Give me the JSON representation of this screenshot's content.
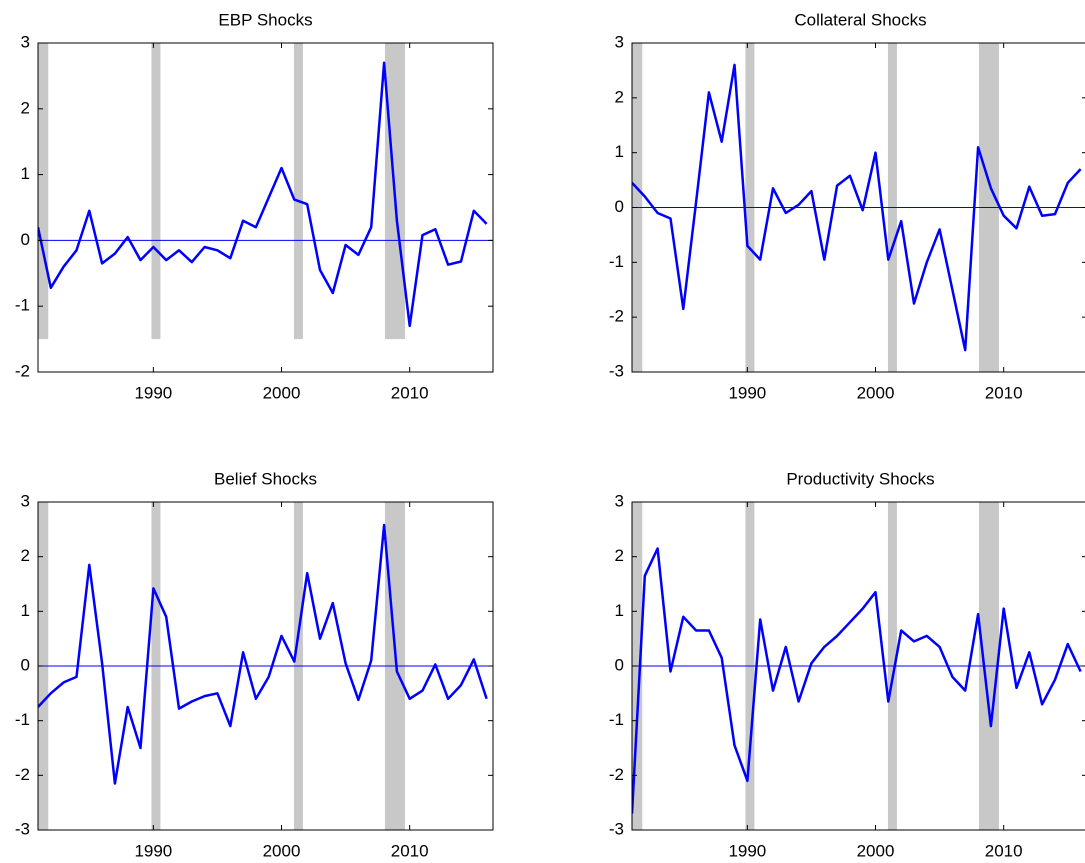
{
  "chart_data": [
    {
      "type": "line",
      "title": "EBP Shocks",
      "color": "#0000ff",
      "shade_color": "#c8c8c8",
      "x": [
        1981,
        1982,
        1983,
        1984,
        1985,
        1986,
        1987,
        1988,
        1989,
        1990,
        1991,
        1992,
        1993,
        1994,
        1995,
        1996,
        1997,
        1998,
        1999,
        2000,
        2001,
        2002,
        2003,
        2004,
        2005,
        2006,
        2007,
        2008,
        2009,
        2010,
        2011,
        2012,
        2013,
        2014,
        2015,
        2016
      ],
      "values": [
        0.2,
        -0.72,
        -0.4,
        -0.15,
        0.45,
        -0.35,
        -0.2,
        0.05,
        -0.3,
        -0.1,
        -0.3,
        -0.15,
        -0.33,
        -0.1,
        -0.15,
        -0.27,
        0.3,
        0.2,
        0.65,
        1.1,
        0.62,
        0.55,
        -0.45,
        -0.8,
        -0.07,
        -0.22,
        0.2,
        2.7,
        0.3,
        -1.3,
        0.08,
        0.17,
        -0.37,
        -0.32,
        0.45,
        0.25
      ],
      "reference_line": 0,
      "shaded_periods": [
        [
          1981,
          1981.8
        ],
        [
          1989.85,
          1990.55
        ],
        [
          2000.97,
          2001.67
        ],
        [
          2008.07,
          2009.63
        ]
      ],
      "shade_bottom": -1.5,
      "xlim": [
        1981,
        2016.5
      ],
      "xticks": [
        1990,
        2000,
        2010
      ],
      "ylim": [
        -2,
        3
      ],
      "yticks": [
        -2,
        -1,
        0,
        1,
        2,
        3
      ]
    },
    {
      "type": "line",
      "title": "Collateral Shocks",
      "color": "#0000ff",
      "shade_color": "#c8c8c8",
      "x": [
        1981,
        1982,
        1983,
        1984,
        1985,
        1986,
        1987,
        1988,
        1989,
        1990,
        1991,
        1992,
        1993,
        1994,
        1995,
        1996,
        1997,
        1998,
        1999,
        2000,
        2001,
        2002,
        2003,
        2004,
        2005,
        2006,
        2007,
        2008,
        2009,
        2010,
        2011,
        2012,
        2013,
        2014,
        2015,
        2016
      ],
      "values": [
        0.45,
        0.2,
        -0.1,
        -0.2,
        -1.85,
        0.1,
        2.1,
        1.2,
        2.6,
        -0.7,
        -0.95,
        0.35,
        -0.1,
        0.05,
        0.3,
        -0.95,
        0.4,
        0.58,
        -0.05,
        1.0,
        -0.95,
        -0.25,
        -1.75,
        -1.0,
        -0.4,
        -1.5,
        -2.6,
        1.1,
        0.35,
        -0.15,
        -0.38,
        0.38,
        -0.15,
        -0.12,
        0.45,
        0.7
      ],
      "reference_line": 0,
      "shaded_periods": [
        [
          1981,
          1981.8
        ],
        [
          1989.85,
          1990.55
        ],
        [
          2000.97,
          2001.67
        ],
        [
          2008.07,
          2009.63
        ]
      ],
      "xlim": [
        1981,
        2016.5
      ],
      "xticks": [
        1990,
        2000,
        2010
      ],
      "ylim": [
        -3,
        3
      ],
      "yticks": [
        -3,
        -2,
        -1,
        0,
        1,
        2,
        3
      ]
    },
    {
      "type": "line",
      "title": "Belief Shocks",
      "color": "#0000ff",
      "shade_color": "#c8c8c8",
      "x": [
        1981,
        1982,
        1983,
        1984,
        1985,
        1986,
        1987,
        1988,
        1989,
        1990,
        1991,
        1992,
        1993,
        1994,
        1995,
        1996,
        1997,
        1998,
        1999,
        2000,
        2001,
        2002,
        2003,
        2004,
        2005,
        2006,
        2007,
        2008,
        2009,
        2010,
        2011,
        2012,
        2013,
        2014,
        2015,
        2016
      ],
      "values": [
        -0.75,
        -0.5,
        -0.3,
        -0.2,
        1.85,
        0.05,
        -2.15,
        -0.75,
        -1.5,
        1.42,
        0.9,
        -0.78,
        -0.65,
        -0.55,
        -0.5,
        -1.1,
        0.25,
        -0.6,
        -0.2,
        0.55,
        0.08,
        1.7,
        0.5,
        1.15,
        0.05,
        -0.62,
        0.1,
        2.58,
        -0.1,
        -0.6,
        -0.45,
        0.03,
        -0.6,
        -0.35,
        0.12,
        -0.6
      ],
      "reference_line": 0,
      "shaded_periods": [
        [
          1981,
          1981.8
        ],
        [
          1989.85,
          1990.55
        ],
        [
          2000.97,
          2001.67
        ],
        [
          2008.07,
          2009.63
        ]
      ],
      "xlim": [
        1981,
        2016.5
      ],
      "xticks": [
        1990,
        2000,
        2010
      ],
      "ylim": [
        -3,
        3
      ],
      "yticks": [
        -3,
        -2,
        -1,
        0,
        1,
        2,
        3
      ]
    },
    {
      "type": "line",
      "title": "Productivity Shocks",
      "color": "#0000ff",
      "shade_color": "#c8c8c8",
      "x": [
        1981,
        1982,
        1983,
        1984,
        1985,
        1986,
        1987,
        1988,
        1989,
        1990,
        1991,
        1992,
        1993,
        1994,
        1995,
        1996,
        1997,
        1998,
        1999,
        2000,
        2001,
        2002,
        2003,
        2004,
        2005,
        2006,
        2007,
        2008,
        2009,
        2010,
        2011,
        2012,
        2013,
        2014,
        2015,
        2016
      ],
      "values": [
        -2.7,
        1.65,
        2.15,
        -0.1,
        0.9,
        0.65,
        0.65,
        0.15,
        -1.45,
        -2.1,
        0.85,
        -0.45,
        0.35,
        -0.65,
        0.05,
        0.35,
        0.55,
        0.8,
        1.05,
        1.35,
        -0.65,
        0.65,
        0.45,
        0.55,
        0.35,
        -0.2,
        -0.45,
        0.95,
        -1.1,
        1.05,
        -0.4,
        0.25,
        -0.7,
        -0.25,
        0.4,
        -0.1
      ],
      "reference_line": 0,
      "shaded_periods": [
        [
          1981,
          1981.8
        ],
        [
          1989.85,
          1990.55
        ],
        [
          2000.97,
          2001.67
        ],
        [
          2008.07,
          2009.63
        ]
      ],
      "xlim": [
        1981,
        2016.5
      ],
      "xticks": [
        1990,
        2000,
        2010
      ],
      "ylim": [
        -3,
        3
      ],
      "yticks": [
        -3,
        -2,
        -1,
        0,
        1,
        2,
        3
      ]
    }
  ]
}
